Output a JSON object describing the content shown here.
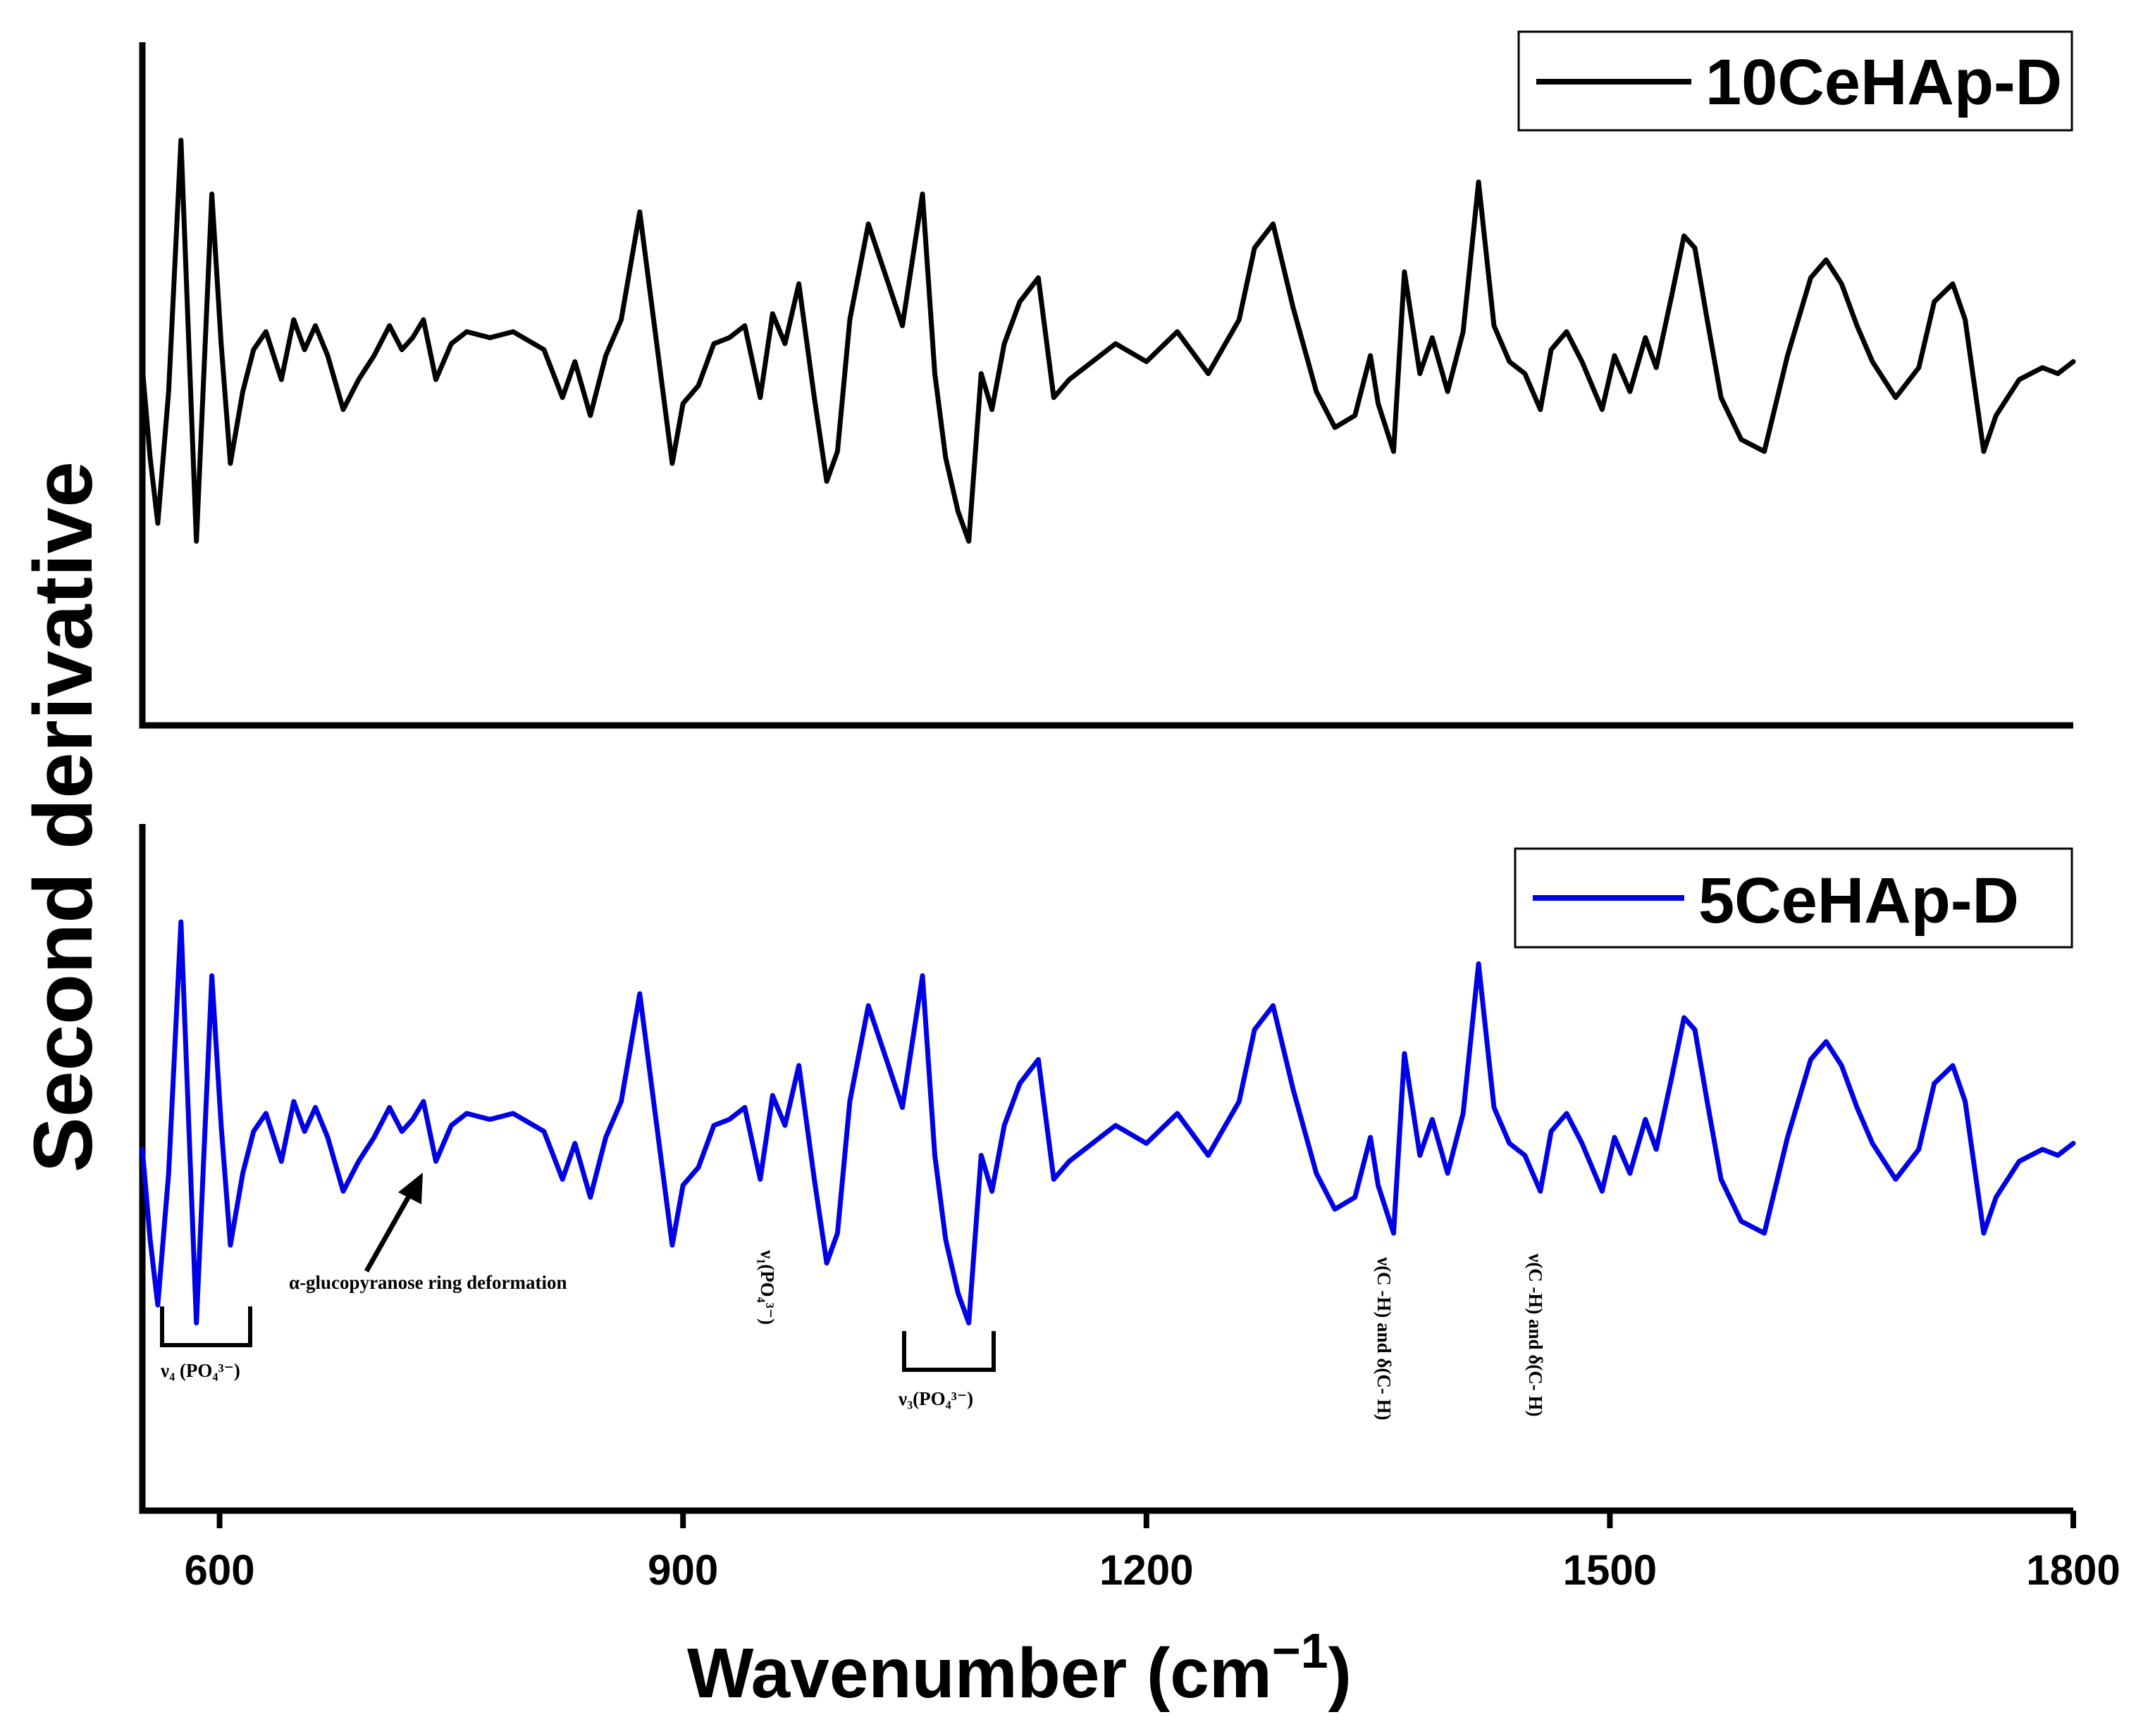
{
  "chart_data": {
    "type": "line",
    "ylabel": "Second derivative",
    "xlabel": "Wavenumber (cm",
    "xlabel_superscript": "−1",
    "xlabel_close": ")",
    "xlim": [
      550,
      1800
    ],
    "xticks": [
      600,
      900,
      1200,
      1500,
      1800
    ],
    "panels": [
      {
        "name": "10CeHAp-D",
        "legend_label": "10CeHAp-D",
        "color": "#000000",
        "x": [
          550,
          555,
          560,
          567,
          575,
          585,
          595,
          601,
          607,
          615,
          622,
          630,
          640,
          648,
          655,
          662,
          670,
          680,
          690,
          700,
          710,
          718,
          725,
          732,
          740,
          750,
          760,
          775,
          790,
          810,
          822,
          830,
          840,
          850,
          860,
          872,
          882,
          893,
          900,
          910,
          920,
          930,
          940,
          950,
          958,
          966,
          975,
          985,
          993,
          1000,
          1008,
          1020,
          1033,
          1042,
          1055,
          1063,
          1070,
          1078,
          1085,
          1093,
          1100,
          1108,
          1118,
          1130,
          1140,
          1150,
          1165,
          1180,
          1200,
          1220,
          1240,
          1260,
          1270,
          1282,
          1295,
          1310,
          1322,
          1335,
          1345,
          1350,
          1360,
          1367,
          1377,
          1385,
          1395,
          1405,
          1415,
          1425,
          1435,
          1445,
          1455,
          1462,
          1472,
          1482,
          1495,
          1503,
          1513,
          1523,
          1530,
          1540,
          1548,
          1555,
          1563,
          1572,
          1585,
          1600,
          1615,
          1630,
          1640,
          1650,
          1660,
          1670,
          1685,
          1700,
          1710,
          1722,
          1730,
          1742,
          1750,
          1765,
          1780,
          1790,
          1800
        ],
        "values": [
          0.4,
          -0.35,
          -0.9,
          0.2,
          2.3,
          -1.05,
          1.85,
          0.6,
          -0.4,
          0.2,
          0.55,
          0.7,
          0.3,
          0.8,
          0.55,
          0.75,
          0.5,
          0.05,
          0.3,
          0.5,
          0.75,
          0.55,
          0.65,
          0.8,
          0.3,
          0.6,
          0.7,
          0.65,
          0.7,
          0.55,
          0.15,
          0.45,
          0.0,
          0.5,
          0.8,
          1.7,
          0.7,
          -0.4,
          0.1,
          0.25,
          0.6,
          0.65,
          0.75,
          0.15,
          0.85,
          0.6,
          1.1,
          0.15,
          -0.55,
          -0.3,
          0.8,
          1.6,
          1.1,
          0.75,
          1.85,
          0.35,
          -0.35,
          -0.8,
          -1.05,
          0.35,
          0.05,
          0.6,
          0.95,
          1.15,
          0.15,
          0.3,
          0.45,
          0.6,
          0.45,
          0.7,
          0.35,
          0.8,
          1.4,
          1.6,
          0.9,
          0.2,
          -0.1,
          0.0,
          0.5,
          0.1,
          -0.3,
          1.2,
          0.35,
          0.65,
          0.2,
          0.7,
          1.95,
          0.75,
          0.45,
          0.35,
          0.05,
          0.55,
          0.7,
          0.45,
          0.05,
          0.5,
          0.2,
          0.65,
          0.4,
          1.0,
          1.5,
          1.4,
          0.8,
          0.15,
          -0.2,
          -0.3,
          0.5,
          1.15,
          1.3,
          1.1,
          0.75,
          0.45,
          0.15,
          0.4,
          0.95,
          1.1,
          0.8,
          -0.3,
          0.0,
          0.3,
          0.4,
          0.35,
          0.45
        ]
      },
      {
        "name": "5CeHAp-D",
        "legend_label": "5CeHAp-D",
        "color": "#0000e6",
        "x": [
          550,
          555,
          560,
          567,
          575,
          585,
          595,
          601,
          607,
          615,
          622,
          630,
          640,
          648,
          655,
          662,
          670,
          680,
          690,
          700,
          710,
          718,
          725,
          732,
          740,
          750,
          760,
          775,
          790,
          810,
          822,
          830,
          840,
          850,
          860,
          872,
          882,
          893,
          900,
          910,
          920,
          930,
          940,
          950,
          958,
          966,
          975,
          985,
          993,
          1000,
          1008,
          1020,
          1033,
          1042,
          1055,
          1063,
          1070,
          1078,
          1085,
          1093,
          1100,
          1108,
          1118,
          1130,
          1140,
          1150,
          1165,
          1180,
          1200,
          1220,
          1240,
          1260,
          1270,
          1282,
          1295,
          1310,
          1322,
          1335,
          1345,
          1350,
          1360,
          1367,
          1377,
          1385,
          1395,
          1405,
          1415,
          1425,
          1435,
          1445,
          1455,
          1462,
          1472,
          1482,
          1495,
          1503,
          1513,
          1523,
          1530,
          1540,
          1548,
          1555,
          1563,
          1572,
          1585,
          1600,
          1615,
          1630,
          1640,
          1650,
          1660,
          1670,
          1685,
          1700,
          1710,
          1722,
          1730,
          1742,
          1750,
          1765,
          1780,
          1790,
          1800
        ],
        "values": [
          0.4,
          -0.35,
          -0.9,
          0.2,
          2.3,
          -1.05,
          1.85,
          0.6,
          -0.4,
          0.2,
          0.55,
          0.7,
          0.3,
          0.8,
          0.55,
          0.75,
          0.5,
          0.05,
          0.3,
          0.5,
          0.75,
          0.55,
          0.65,
          0.8,
          0.3,
          0.6,
          0.7,
          0.65,
          0.7,
          0.55,
          0.15,
          0.45,
          0.0,
          0.5,
          0.8,
          1.7,
          0.7,
          -0.4,
          0.1,
          0.25,
          0.6,
          0.65,
          0.75,
          0.15,
          0.85,
          0.6,
          1.1,
          0.15,
          -0.55,
          -0.3,
          0.8,
          1.6,
          1.1,
          0.75,
          1.85,
          0.35,
          -0.35,
          -0.8,
          -1.05,
          0.35,
          0.05,
          0.6,
          0.95,
          1.15,
          0.15,
          0.3,
          0.45,
          0.6,
          0.45,
          0.7,
          0.35,
          0.8,
          1.4,
          1.6,
          0.9,
          0.2,
          -0.1,
          0.0,
          0.5,
          0.1,
          -0.3,
          1.2,
          0.35,
          0.65,
          0.2,
          0.7,
          1.95,
          0.75,
          0.45,
          0.35,
          0.05,
          0.55,
          0.7,
          0.45,
          0.05,
          0.5,
          0.2,
          0.65,
          0.4,
          1.0,
          1.5,
          1.4,
          0.8,
          0.15,
          -0.2,
          -0.3,
          0.5,
          1.15,
          1.3,
          1.1,
          0.75,
          0.45,
          0.15,
          0.4,
          0.95,
          1.1,
          0.8,
          -0.3,
          0.0,
          0.3,
          0.4,
          0.35,
          0.45
        ]
      }
    ],
    "annotations": [
      {
        "text": "α-glucopyranose ring deformation",
        "kind": "arrow",
        "x": 728
      },
      {
        "text": "ν₁(PO₄³⁻)",
        "kind": "vertical",
        "x": 955
      },
      {
        "text": "ν(C -H) and δ(C- H)",
        "kind": "vertical",
        "x": 1352
      },
      {
        "text": "ν(C -H) and δ(C- H)",
        "kind": "vertical",
        "x": 1455
      },
      {
        "text": "ν₄ (PO₄³⁻)",
        "kind": "bracket",
        "x_range": [
          558,
          618
        ]
      },
      {
        "text": "ν₃(PO₄³⁻)",
        "kind": "bracket",
        "x_range": [
          1043,
          1100
        ]
      }
    ]
  }
}
